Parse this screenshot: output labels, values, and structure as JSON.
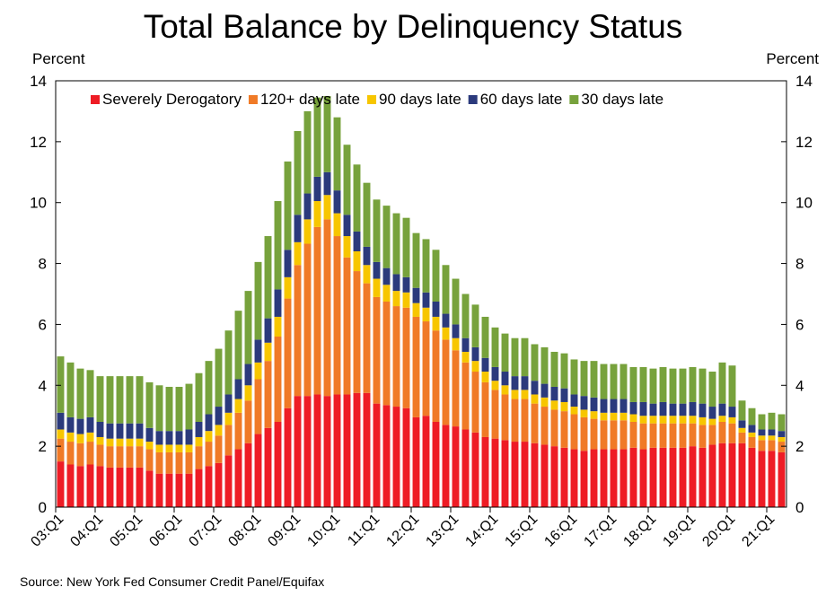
{
  "chart_data": {
    "type": "bar",
    "stacked": true,
    "title": "Total Balance by Delinquency Status",
    "ylabel_left": "Percent",
    "ylabel_right": "Percent",
    "ylim": [
      0,
      14
    ],
    "yticks": [
      0,
      2,
      4,
      6,
      8,
      10,
      12,
      14
    ],
    "grid": false,
    "legend_position": "top",
    "x_tick_labels": [
      "03:Q1",
      "04:Q1",
      "05:Q1",
      "06:Q1",
      "07:Q1",
      "08:Q1",
      "09:Q1",
      "10:Q1",
      "11:Q1",
      "12:Q1",
      "13:Q1",
      "14:Q1",
      "15:Q1",
      "16:Q1",
      "17:Q1",
      "18:Q1",
      "19:Q1",
      "20:Q1",
      "21:Q1"
    ],
    "source": "Source: New York Fed Consumer Credit Panel/Equifax",
    "series": [
      {
        "name": "Severely Derogatory",
        "color": "#ee1c25",
        "values": [
          1.5,
          1.4,
          1.35,
          1.4,
          1.35,
          1.3,
          1.3,
          1.3,
          1.3,
          1.2,
          1.1,
          1.1,
          1.1,
          1.1,
          1.25,
          1.35,
          1.45,
          1.7,
          1.9,
          2.1,
          2.4,
          2.6,
          2.8,
          3.25,
          3.65,
          3.65,
          3.7,
          3.65,
          3.7,
          3.7,
          3.75,
          3.75,
          3.4,
          3.35,
          3.3,
          3.25,
          2.95,
          3.0,
          2.8,
          2.7,
          2.65,
          2.55,
          2.45,
          2.3,
          2.25,
          2.2,
          2.15,
          2.15,
          2.1,
          2.05,
          2.0,
          1.95,
          1.9,
          1.85,
          1.9,
          1.9,
          1.9,
          1.9,
          1.95,
          1.9,
          1.95,
          1.95,
          1.95,
          1.95,
          2.0,
          1.95,
          2.05,
          2.1,
          2.1,
          2.1,
          1.95,
          1.85,
          1.85,
          1.8
        ]
      },
      {
        "name": "120+ days late",
        "color": "#f07a27",
        "values": [
          0.75,
          0.75,
          0.75,
          0.75,
          0.7,
          0.7,
          0.7,
          0.7,
          0.7,
          0.7,
          0.7,
          0.7,
          0.7,
          0.7,
          0.75,
          0.8,
          0.9,
          1.0,
          1.2,
          1.4,
          1.8,
          2.2,
          2.8,
          3.6,
          4.3,
          5.0,
          5.5,
          5.8,
          5.2,
          4.5,
          4.0,
          3.6,
          3.5,
          3.4,
          3.3,
          3.3,
          3.3,
          3.1,
          3.0,
          2.8,
          2.5,
          2.2,
          2.0,
          1.8,
          1.6,
          1.5,
          1.4,
          1.4,
          1.3,
          1.25,
          1.2,
          1.2,
          1.15,
          1.1,
          1.0,
          0.95,
          0.95,
          0.95,
          0.85,
          0.85,
          0.8,
          0.8,
          0.8,
          0.8,
          0.75,
          0.75,
          0.65,
          0.7,
          0.65,
          0.35,
          0.35,
          0.35,
          0.35,
          0.35
        ]
      },
      {
        "name": "90 days late",
        "color": "#f7c600",
        "values": [
          0.3,
          0.3,
          0.3,
          0.3,
          0.25,
          0.25,
          0.25,
          0.25,
          0.25,
          0.25,
          0.25,
          0.25,
          0.25,
          0.25,
          0.3,
          0.35,
          0.35,
          0.4,
          0.45,
          0.5,
          0.55,
          0.6,
          0.65,
          0.7,
          0.75,
          0.8,
          0.85,
          0.8,
          0.75,
          0.7,
          0.65,
          0.6,
          0.6,
          0.55,
          0.5,
          0.5,
          0.45,
          0.45,
          0.45,
          0.4,
          0.4,
          0.35,
          0.35,
          0.35,
          0.3,
          0.3,
          0.3,
          0.3,
          0.3,
          0.3,
          0.3,
          0.3,
          0.25,
          0.25,
          0.25,
          0.25,
          0.25,
          0.25,
          0.25,
          0.25,
          0.25,
          0.25,
          0.25,
          0.25,
          0.25,
          0.25,
          0.2,
          0.2,
          0.2,
          0.15,
          0.15,
          0.15,
          0.15,
          0.15
        ]
      },
      {
        "name": "60 days late",
        "color": "#2b3a7c",
        "values": [
          0.55,
          0.5,
          0.5,
          0.5,
          0.5,
          0.5,
          0.5,
          0.5,
          0.5,
          0.45,
          0.45,
          0.45,
          0.45,
          0.5,
          0.5,
          0.55,
          0.6,
          0.6,
          0.65,
          0.7,
          0.75,
          0.8,
          0.9,
          0.9,
          0.9,
          0.85,
          0.8,
          0.75,
          0.75,
          0.7,
          0.65,
          0.6,
          0.55,
          0.55,
          0.55,
          0.5,
          0.5,
          0.5,
          0.5,
          0.45,
          0.45,
          0.45,
          0.45,
          0.45,
          0.45,
          0.45,
          0.45,
          0.45,
          0.45,
          0.45,
          0.45,
          0.45,
          0.4,
          0.45,
          0.45,
          0.45,
          0.45,
          0.45,
          0.4,
          0.45,
          0.4,
          0.45,
          0.4,
          0.4,
          0.45,
          0.45,
          0.4,
          0.4,
          0.35,
          0.25,
          0.25,
          0.2,
          0.2,
          0.2
        ]
      },
      {
        "name": "30 days late",
        "color": "#77a23c",
        "values": [
          1.85,
          1.8,
          1.65,
          1.55,
          1.5,
          1.55,
          1.55,
          1.55,
          1.55,
          1.5,
          1.5,
          1.45,
          1.45,
          1.5,
          1.6,
          1.75,
          1.9,
          2.1,
          2.25,
          2.4,
          2.55,
          2.7,
          2.9,
          2.9,
          2.75,
          2.7,
          2.6,
          2.5,
          2.4,
          2.3,
          2.2,
          2.1,
          2.05,
          2.05,
          2.0,
          1.95,
          1.8,
          1.75,
          1.7,
          1.6,
          1.5,
          1.45,
          1.4,
          1.35,
          1.3,
          1.25,
          1.25,
          1.25,
          1.2,
          1.2,
          1.15,
          1.15,
          1.15,
          1.15,
          1.2,
          1.15,
          1.15,
          1.15,
          1.15,
          1.15,
          1.15,
          1.15,
          1.15,
          1.15,
          1.15,
          1.15,
          1.15,
          1.35,
          1.35,
          0.65,
          0.55,
          0.5,
          0.55,
          0.55
        ]
      }
    ]
  }
}
